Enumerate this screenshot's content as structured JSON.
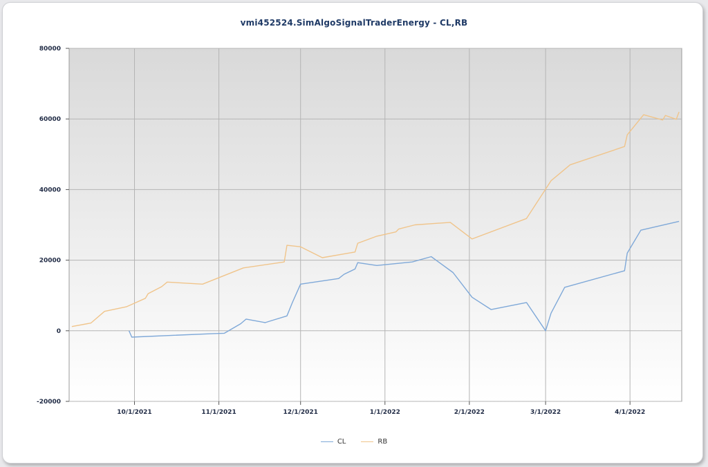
{
  "chart_data": {
    "type": "line",
    "title": "vmi452524.SimAlgoSignalTraderEnergy - CL,RB",
    "ylim": [
      -20000,
      80000
    ],
    "yticks": [
      "80000",
      "60000",
      "40000",
      "20000",
      "0",
      "-20000"
    ],
    "ytick_values": [
      80000,
      60000,
      40000,
      20000,
      0,
      -20000
    ],
    "xlim": [
      "2021-09-07",
      "2022-04-20"
    ],
    "xticks": [
      "10/1/2021",
      "11/1/2021",
      "12/1/2021",
      "1/1/2022",
      "2/1/2022",
      "3/1/2022",
      "4/1/2022"
    ],
    "xtick_dates": [
      "2021-10-01",
      "2021-11-01",
      "2021-12-01",
      "2022-01-01",
      "2022-02-01",
      "2022-03-01",
      "2022-04-01"
    ],
    "grid": true,
    "legend_position": "bottom-center",
    "series": [
      {
        "name": "CL",
        "color": "#7ea8d8",
        "points": [
          [
            "2021-09-29",
            0
          ],
          [
            "2021-09-30",
            -1800
          ],
          [
            "2021-10-30",
            -800
          ],
          [
            "2021-11-03",
            -700
          ],
          [
            "2021-11-09",
            2000
          ],
          [
            "2021-11-11",
            3300
          ],
          [
            "2021-11-18",
            2300
          ],
          [
            "2021-11-20",
            2800
          ],
          [
            "2021-11-26",
            4200
          ],
          [
            "2021-11-28",
            8000
          ],
          [
            "2021-12-01",
            13200
          ],
          [
            "2021-12-15",
            14800
          ],
          [
            "2021-12-17",
            16000
          ],
          [
            "2021-12-21",
            17500
          ],
          [
            "2021-12-22",
            19300
          ],
          [
            "2021-12-29",
            18500
          ],
          [
            "2022-01-11",
            19500
          ],
          [
            "2022-01-18",
            21000
          ],
          [
            "2022-01-26",
            16500
          ],
          [
            "2022-02-02",
            9500
          ],
          [
            "2022-02-09",
            6000
          ],
          [
            "2022-02-22",
            8000
          ],
          [
            "2022-03-01",
            0
          ],
          [
            "2022-03-03",
            5000
          ],
          [
            "2022-03-08",
            12300
          ],
          [
            "2022-03-30",
            17000
          ],
          [
            "2022-03-31",
            22000
          ],
          [
            "2022-04-05",
            28500
          ],
          [
            "2022-04-19",
            31000
          ]
        ]
      },
      {
        "name": "RB",
        "color": "#f0c48a",
        "points": [
          [
            "2021-09-08",
            1200
          ],
          [
            "2021-09-15",
            2200
          ],
          [
            "2021-09-20",
            5500
          ],
          [
            "2021-09-28",
            6800
          ],
          [
            "2021-10-01",
            7800
          ],
          [
            "2021-10-05",
            9200
          ],
          [
            "2021-10-06",
            10500
          ],
          [
            "2021-10-11",
            12500
          ],
          [
            "2021-10-13",
            13800
          ],
          [
            "2021-10-26",
            13200
          ],
          [
            "2021-11-10",
            17800
          ],
          [
            "2021-11-25",
            19500
          ],
          [
            "2021-11-26",
            24200
          ],
          [
            "2021-12-01",
            23800
          ],
          [
            "2021-12-09",
            20700
          ],
          [
            "2021-12-21",
            22300
          ],
          [
            "2021-12-22",
            24800
          ],
          [
            "2021-12-29",
            26800
          ],
          [
            "2022-01-05",
            28000
          ],
          [
            "2022-01-06",
            28800
          ],
          [
            "2022-01-12",
            30000
          ],
          [
            "2022-01-25",
            30700
          ],
          [
            "2022-02-02",
            26000
          ],
          [
            "2022-02-22",
            31800
          ],
          [
            "2022-03-03",
            42500
          ],
          [
            "2022-03-10",
            47000
          ],
          [
            "2022-03-30",
            52200
          ],
          [
            "2022-03-31",
            55500
          ],
          [
            "2022-04-06",
            61200
          ],
          [
            "2022-04-13",
            59700
          ],
          [
            "2022-04-14",
            61000
          ],
          [
            "2022-04-18",
            59900
          ],
          [
            "2022-04-19",
            62000
          ]
        ]
      }
    ]
  }
}
